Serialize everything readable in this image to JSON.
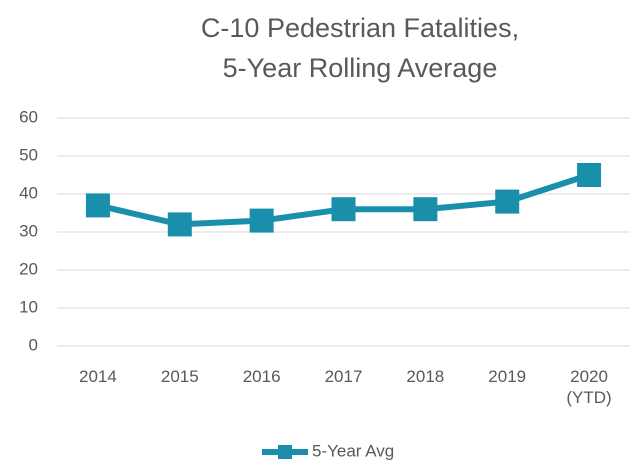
{
  "chart_data": {
    "type": "line",
    "title": [
      "C-10 Pedestrian Fatalities,",
      "5-Year Rolling Average"
    ],
    "categories": [
      "2014",
      "2015",
      "2016",
      "2017",
      "2018",
      "2019",
      "2020 (YTD)"
    ],
    "series": [
      {
        "name": "5-Year Avg",
        "color": "#1a8fab",
        "values": [
          37,
          32,
          33,
          36,
          36,
          38,
          45
        ]
      }
    ],
    "ylim": [
      0,
      60
    ],
    "yticks": [
      0,
      10,
      20,
      30,
      40,
      50,
      60
    ],
    "grid": true,
    "legend": "bottom"
  }
}
